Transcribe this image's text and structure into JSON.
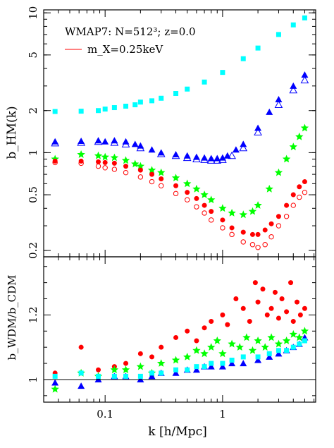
{
  "chart_data": [
    {
      "type": "scatter",
      "ylabel": "b_HM(k)",
      "yscale": "log",
      "xscale": "log",
      "xlim": [
        0.03,
        6.2
      ],
      "ylim": [
        0.18,
        10.5
      ],
      "yticks": [
        0.2,
        0.5,
        1,
        2,
        5,
        10
      ],
      "yticklabels": [
        "0.2",
        "0.5",
        "1",
        "2",
        "5",
        "10"
      ],
      "annotations": [
        {
          "text": "WMAP7: N=512³; z=0.0"
        },
        {
          "text": "m_X=0.25keV",
          "swatch_color": "#ff0000"
        }
      ],
      "series": [
        {
          "color": "#00ffff",
          "marker": "square-filled",
          "x": [
            0.0375,
            0.0625,
            0.0875,
            0.1,
            0.12,
            0.15,
            0.18,
            0.2,
            0.25,
            0.3,
            0.4,
            0.5,
            0.7,
            1.0,
            1.5,
            2.0,
            3.0,
            4.0,
            5.0
          ],
          "y": [
            1.97,
            1.98,
            2.0,
            2.05,
            2.1,
            2.15,
            2.2,
            2.3,
            2.35,
            2.45,
            2.65,
            2.85,
            3.2,
            3.75,
            4.7,
            5.6,
            7.0,
            8.2,
            9.2
          ]
        },
        {
          "color": "#0000ff",
          "marker": "triangle-filled",
          "x": [
            0.0375,
            0.0625,
            0.0875,
            0.1,
            0.12,
            0.15,
            0.18,
            0.2,
            0.25,
            0.3,
            0.4,
            0.5,
            0.6,
            0.7,
            0.8,
            0.9,
            1.0,
            1.1,
            1.3,
            1.5,
            2.0,
            2.5,
            3.0,
            4.0,
            5.0
          ],
          "y": [
            1.2,
            1.21,
            1.22,
            1.2,
            1.22,
            1.2,
            1.15,
            1.12,
            1.05,
            1.0,
            0.97,
            0.95,
            0.93,
            0.92,
            0.91,
            0.91,
            0.92,
            0.95,
            1.05,
            1.15,
            1.5,
            1.95,
            2.4,
            3.0,
            3.6
          ]
        },
        {
          "color": "#0000ff",
          "marker": "triangle-open",
          "x": [
            0.0375,
            0.0625,
            0.0875,
            0.12,
            0.15,
            0.2,
            0.3,
            0.4,
            0.5,
            0.6,
            0.7,
            0.8,
            0.9,
            1.0,
            1.2,
            1.5,
            2.0,
            3.0,
            4.0,
            5.0
          ],
          "y": [
            1.17,
            1.18,
            1.2,
            1.18,
            1.15,
            1.08,
            0.98,
            0.95,
            0.92,
            0.9,
            0.89,
            0.88,
            0.88,
            0.89,
            0.95,
            1.08,
            1.4,
            2.2,
            2.8,
            3.3
          ]
        },
        {
          "color": "#00ff00",
          "marker": "star",
          "x": [
            0.0375,
            0.0625,
            0.0875,
            0.1,
            0.12,
            0.15,
            0.18,
            0.2,
            0.25,
            0.3,
            0.4,
            0.5,
            0.6,
            0.7,
            0.8,
            1.0,
            1.2,
            1.5,
            1.8,
            2.0,
            2.5,
            3.0,
            3.5,
            4.0,
            4.5,
            5.0
          ],
          "y": [
            0.9,
            0.97,
            0.95,
            0.93,
            0.92,
            0.88,
            0.83,
            0.8,
            0.75,
            0.72,
            0.66,
            0.6,
            0.55,
            0.5,
            0.46,
            0.4,
            0.37,
            0.36,
            0.38,
            0.42,
            0.55,
            0.72,
            0.9,
            1.1,
            1.3,
            1.5
          ]
        },
        {
          "color": "#ff0000",
          "marker": "circle-filled",
          "x": [
            0.0375,
            0.0625,
            0.0875,
            0.1,
            0.12,
            0.15,
            0.2,
            0.25,
            0.3,
            0.4,
            0.5,
            0.6,
            0.7,
            0.8,
            1.0,
            1.2,
            1.5,
            1.8,
            2.0,
            2.3,
            2.6,
            3.0,
            3.5,
            4.0,
            4.5,
            5.0
          ],
          "y": [
            0.87,
            0.87,
            0.86,
            0.85,
            0.84,
            0.8,
            0.75,
            0.7,
            0.65,
            0.58,
            0.52,
            0.47,
            0.42,
            0.38,
            0.33,
            0.29,
            0.27,
            0.26,
            0.26,
            0.28,
            0.31,
            0.35,
            0.42,
            0.5,
            0.57,
            0.62
          ]
        },
        {
          "color": "#ff0000",
          "marker": "circle-open",
          "x": [
            0.0375,
            0.0625,
            0.0875,
            0.1,
            0.12,
            0.15,
            0.2,
            0.25,
            0.3,
            0.4,
            0.5,
            0.6,
            0.7,
            0.8,
            1.0,
            1.2,
            1.5,
            1.8,
            2.0,
            2.3,
            2.6,
            3.0,
            3.5,
            4.0,
            4.5,
            5.0
          ],
          "y": [
            0.85,
            0.84,
            0.8,
            0.78,
            0.76,
            0.72,
            0.67,
            0.62,
            0.58,
            0.51,
            0.46,
            0.41,
            0.37,
            0.33,
            0.29,
            0.26,
            0.23,
            0.22,
            0.21,
            0.22,
            0.25,
            0.3,
            0.35,
            0.42,
            0.48,
            0.52
          ]
        }
      ]
    },
    {
      "type": "scatter",
      "xlabel": "k [h/Mpc]",
      "ylabel": "b_WDM/b_CDM",
      "xscale": "log",
      "xlim": [
        0.03,
        6.2
      ],
      "ylim": [
        0.93,
        1.38
      ],
      "yticks": [
        1.0,
        1.2
      ],
      "yticklabels": [
        "1",
        "1.2"
      ],
      "xticks": [
        0.1,
        1
      ],
      "xticklabels": [
        "0.1",
        "1"
      ],
      "reference_line": 1.0,
      "series": [
        {
          "color": "#ff0000",
          "marker": "circle-filled",
          "x": [
            0.0375,
            0.0625,
            0.0875,
            0.12,
            0.15,
            0.2,
            0.25,
            0.3,
            0.4,
            0.5,
            0.6,
            0.7,
            0.8,
            1.0,
            1.1,
            1.3,
            1.5,
            1.7,
            1.9,
            2.0,
            2.2,
            2.4,
            2.6,
            2.8,
            3.0,
            3.2,
            3.5,
            3.8,
            4.0,
            4.3,
            4.6,
            5.0
          ],
          "y": [
            1.02,
            1.1,
            1.03,
            1.04,
            1.05,
            1.08,
            1.07,
            1.1,
            1.13,
            1.15,
            1.12,
            1.16,
            1.18,
            1.2,
            1.17,
            1.25,
            1.22,
            1.18,
            1.3,
            1.24,
            1.28,
            1.2,
            1.22,
            1.27,
            1.19,
            1.25,
            1.21,
            1.3,
            1.18,
            1.24,
            1.2,
            1.22
          ]
        },
        {
          "color": "#00ff00",
          "marker": "star",
          "x": [
            0.0375,
            0.0625,
            0.0875,
            0.12,
            0.15,
            0.2,
            0.25,
            0.3,
            0.4,
            0.5,
            0.6,
            0.7,
            0.8,
            0.9,
            1.0,
            1.2,
            1.4,
            1.6,
            1.8,
            2.0,
            2.3,
            2.6,
            3.0,
            3.5,
            4.0,
            4.5,
            5.0
          ],
          "y": [
            0.97,
            1.02,
            1.01,
            1.03,
            1.03,
            1.04,
            1.02,
            1.05,
            1.06,
            1.07,
            1.09,
            1.08,
            1.1,
            1.12,
            1.08,
            1.11,
            1.1,
            1.13,
            1.09,
            1.12,
            1.1,
            1.13,
            1.11,
            1.12,
            1.14,
            1.13,
            1.15
          ]
        },
        {
          "color": "#0000ff",
          "marker": "triangle-filled",
          "x": [
            0.0375,
            0.0625,
            0.0875,
            0.12,
            0.15,
            0.2,
            0.25,
            0.3,
            0.4,
            0.5,
            0.6,
            0.7,
            0.8,
            1.0,
            1.2,
            1.5,
            2.0,
            2.5,
            3.0,
            3.5,
            4.0,
            4.5,
            5.0
          ],
          "y": [
            0.99,
            0.98,
            1.0,
            1.01,
            1.01,
            1.0,
            1.01,
            1.02,
            1.02,
            1.03,
            1.03,
            1.04,
            1.04,
            1.04,
            1.05,
            1.05,
            1.06,
            1.07,
            1.08,
            1.09,
            1.1,
            1.11,
            1.13
          ]
        },
        {
          "color": "#00ffff",
          "marker": "square-filled",
          "x": [
            0.0375,
            0.0625,
            0.0875,
            0.12,
            0.15,
            0.2,
            0.25,
            0.3,
            0.4,
            0.5,
            0.6,
            0.7,
            0.8,
            1.0,
            1.2,
            1.5,
            2.0,
            2.5,
            3.0,
            3.5,
            4.0,
            4.5,
            5.0
          ],
          "y": [
            1.01,
            1.02,
            1.01,
            1.01,
            1.01,
            1.01,
            1.02,
            1.02,
            1.03,
            1.03,
            1.04,
            1.04,
            1.05,
            1.05,
            1.06,
            1.07,
            1.07,
            1.08,
            1.09,
            1.09,
            1.1,
            1.11,
            1.12
          ]
        }
      ]
    }
  ]
}
